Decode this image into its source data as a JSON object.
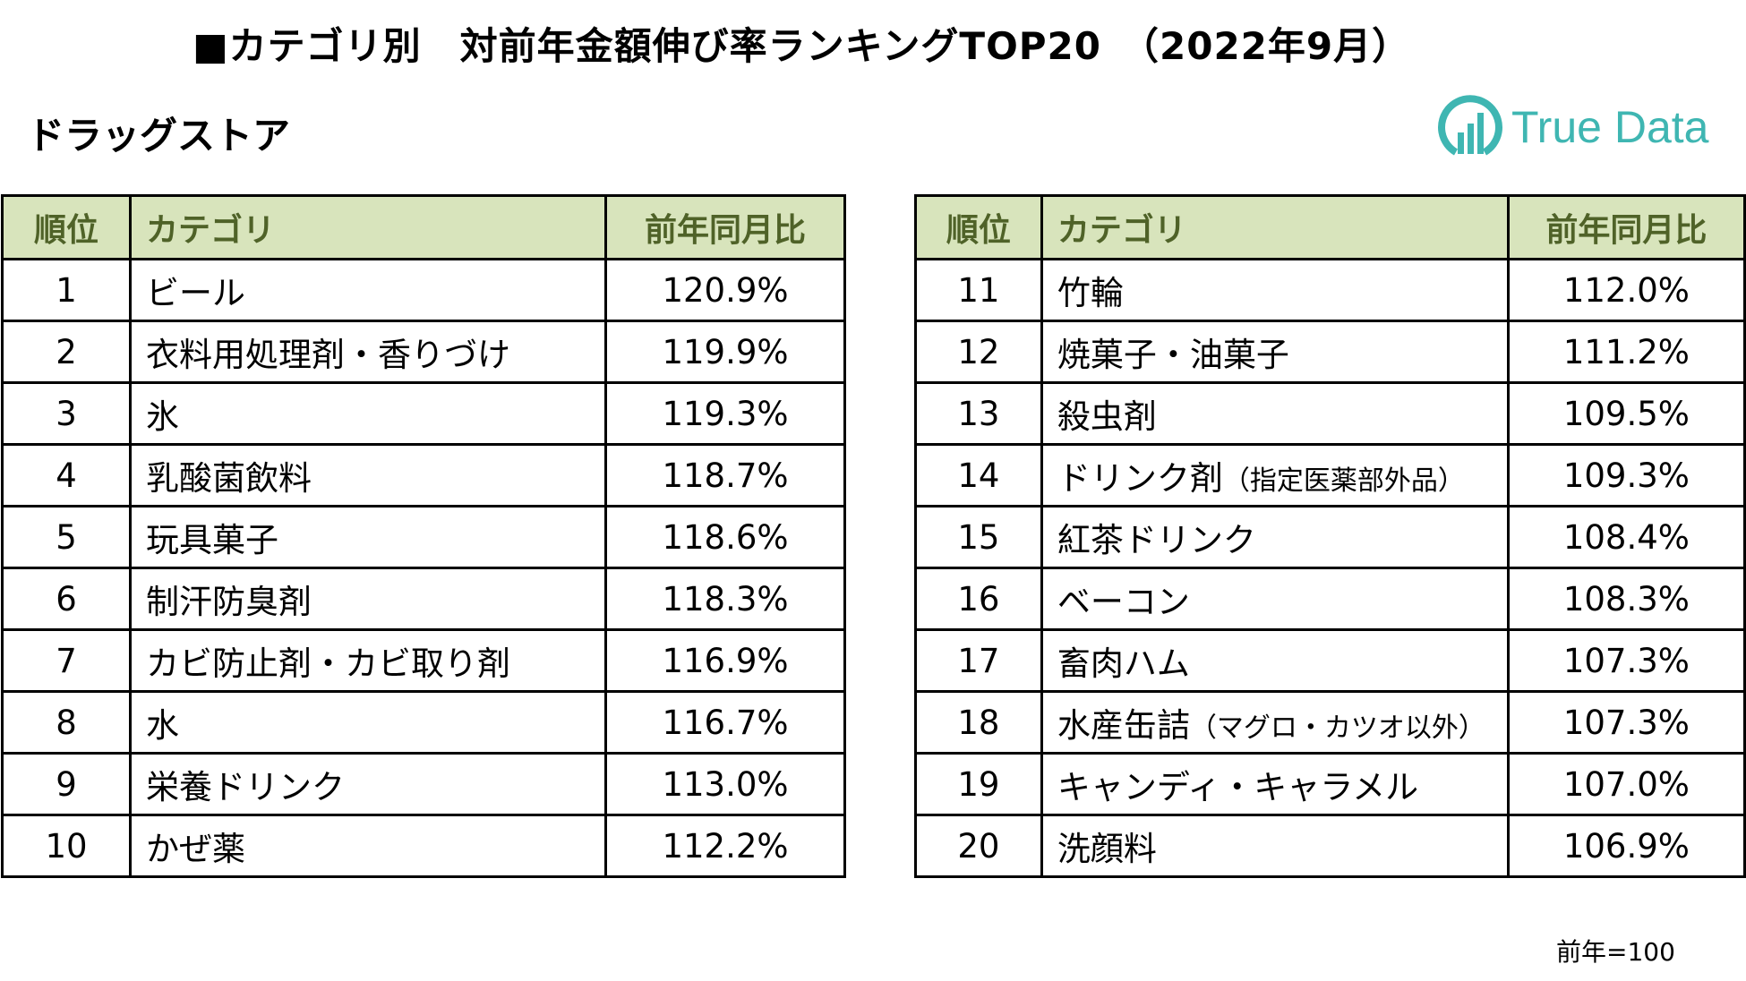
{
  "title": "■カテゴリ別　対前年金額伸び率ランキングTOP20　（2022年9月）",
  "subtitle": "ドラッグストア",
  "logo_text": "True Data",
  "brand_color": "#3fb6b2",
  "header_bg": "#d8e4bc",
  "headers": {
    "rank": "順位",
    "category": "カテゴリ",
    "ratio": "前年同月比"
  },
  "left_rows": [
    {
      "rank": "1",
      "category": "ビール",
      "ratio": "120.9%"
    },
    {
      "rank": "2",
      "category": "衣料用処理剤・香りづけ",
      "ratio": "119.9%"
    },
    {
      "rank": "3",
      "category": "氷",
      "ratio": "119.3%"
    },
    {
      "rank": "4",
      "category": "乳酸菌飲料",
      "ratio": "118.7%"
    },
    {
      "rank": "5",
      "category": "玩具菓子",
      "ratio": "118.6%"
    },
    {
      "rank": "6",
      "category": "制汗防臭剤",
      "ratio": "118.3%"
    },
    {
      "rank": "7",
      "category": "カビ防止剤・カビ取り剤",
      "ratio": "116.9%"
    },
    {
      "rank": "8",
      "category": "水",
      "ratio": "116.7%"
    },
    {
      "rank": "9",
      "category": "栄養ドリンク",
      "ratio": "113.0%"
    },
    {
      "rank": "10",
      "category": "かぜ薬",
      "ratio": "112.2%"
    }
  ],
  "right_rows": [
    {
      "rank": "11",
      "category": "竹輪",
      "note": "",
      "ratio": "112.0%"
    },
    {
      "rank": "12",
      "category": "焼菓子・油菓子",
      "note": "",
      "ratio": "111.2%"
    },
    {
      "rank": "13",
      "category": "殺虫剤",
      "note": "",
      "ratio": "109.5%"
    },
    {
      "rank": "14",
      "category": "ドリンク剤",
      "note": "（指定医薬部外品）",
      "ratio": "109.3%"
    },
    {
      "rank": "15",
      "category": "紅茶ドリンク",
      "note": "",
      "ratio": "108.4%"
    },
    {
      "rank": "16",
      "category": "ベーコン",
      "note": "",
      "ratio": "108.3%"
    },
    {
      "rank": "17",
      "category": "畜肉ハム",
      "note": "",
      "ratio": "107.3%"
    },
    {
      "rank": "18",
      "category": "水産缶詰",
      "note": "（マグロ・カツオ以外）",
      "ratio": "107.3%"
    },
    {
      "rank": "19",
      "category": "キャンディ・キャラメル",
      "note": "",
      "ratio": "107.0%"
    },
    {
      "rank": "20",
      "category": "洗顔料",
      "note": "",
      "ratio": "106.9%"
    }
  ],
  "footer_note": "前年=100"
}
